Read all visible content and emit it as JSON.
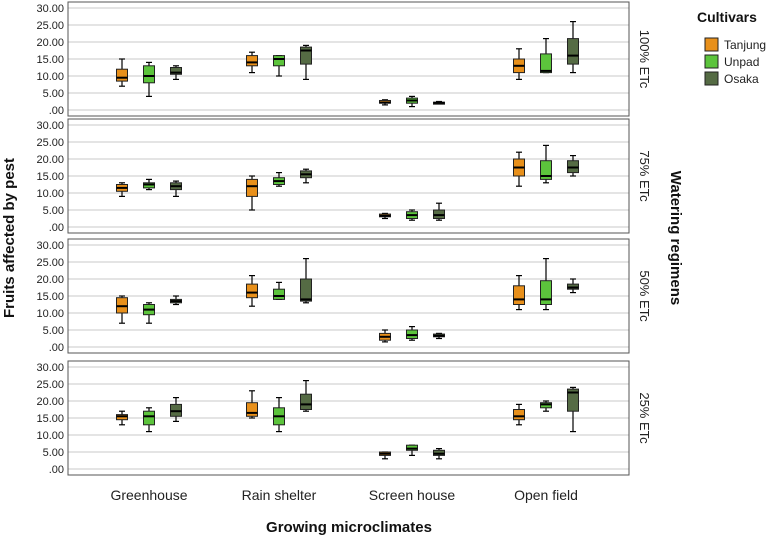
{
  "chart_data": {
    "type": "boxplot",
    "ylabel": "Fruits affected by pest",
    "xlabel": "Growing microclimates",
    "facet_title": "Watering regimens",
    "legend_title": "Cultivars",
    "categories": [
      "Greenhouse",
      "Rain shelter",
      "Screen house",
      "Open field"
    ],
    "ylim": [
      0,
      30
    ],
    "yticks": [
      ".00",
      "5.00",
      "10.00",
      "15.00",
      "20.00",
      "25.00",
      "30.00"
    ],
    "cultivars": [
      {
        "name": "Tanjung",
        "color": "#e8901b"
      },
      {
        "name": "Unpad",
        "color": "#5cc43c"
      },
      {
        "name": "Osaka",
        "color": "#556b44"
      }
    ],
    "panels": [
      {
        "label": "100% ETc",
        "boxes": [
          [
            [
              7,
              8.5,
              9.5,
              12,
              15
            ],
            [
              4,
              8,
              10,
              13,
              14
            ],
            [
              9,
              10.5,
              11,
              12.5,
              13
            ]
          ],
          [
            [
              11,
              13,
              14,
              16,
              17
            ],
            [
              10,
              13,
              15,
              16,
              16
            ],
            [
              9,
              13.5,
              17.5,
              18.5,
              19
            ]
          ],
          [
            [
              1.5,
              2,
              2.2,
              2.8,
              3
            ],
            [
              1,
              2,
              2.8,
              3.5,
              4
            ],
            [
              1.8,
              2,
              2.1,
              2.3,
              2.5
            ]
          ],
          [
            [
              9,
              11,
              13,
              15,
              18
            ],
            [
              11,
              11,
              11.5,
              16.5,
              21
            ],
            [
              11,
              13.5,
              16,
              21,
              26
            ]
          ]
        ]
      },
      {
        "label": "75% ETc",
        "boxes": [
          [
            [
              9,
              10.5,
              11.5,
              12.5,
              13
            ],
            [
              11,
              11.5,
              12.5,
              13,
              14
            ],
            [
              9,
              11,
              12,
              13,
              13.5
            ]
          ],
          [
            [
              5,
              9,
              12,
              14,
              15
            ],
            [
              12,
              12.5,
              13.5,
              14.5,
              16
            ],
            [
              13,
              14.5,
              15.5,
              16.5,
              17
            ]
          ],
          [
            [
              2.5,
              3,
              3.3,
              3.8,
              4
            ],
            [
              2,
              2.5,
              3.5,
              4.5,
              5
            ],
            [
              2,
              2.5,
              3.5,
              5,
              7
            ]
          ],
          [
            [
              12,
              15,
              17.5,
              20,
              22
            ],
            [
              13,
              14,
              15,
              19.5,
              24
            ],
            [
              15,
              16,
              17.5,
              19.5,
              21
            ]
          ]
        ]
      },
      {
        "label": "50% ETc",
        "boxes": [
          [
            [
              7,
              10,
              12,
              14.5,
              15
            ],
            [
              7,
              9.5,
              11,
              12.5,
              13
            ],
            [
              12.5,
              13,
              13.5,
              14,
              15
            ]
          ],
          [
            [
              12,
              14.5,
              16,
              18.5,
              21
            ],
            [
              14,
              14,
              15,
              17,
              19
            ],
            [
              13,
              13.5,
              14,
              20,
              26
            ]
          ],
          [
            [
              1.5,
              2,
              3,
              4,
              5
            ],
            [
              2,
              2.5,
              3.5,
              5,
              6
            ],
            [
              2.5,
              3,
              3.3,
              3.8,
              4
            ]
          ],
          [
            [
              11,
              12.5,
              14,
              18,
              21
            ],
            [
              11,
              12.5,
              14,
              19.5,
              26
            ],
            [
              16,
              17,
              17.5,
              18.5,
              20
            ]
          ]
        ]
      },
      {
        "label": "25% ETc",
        "boxes": [
          [
            [
              13,
              14.5,
              15.5,
              16,
              17
            ],
            [
              11,
              13,
              15.5,
              17,
              18
            ],
            [
              14,
              15.5,
              17,
              19,
              21
            ]
          ],
          [
            [
              15,
              15.5,
              16.5,
              19.5,
              23
            ],
            [
              11,
              13,
              15.5,
              18,
              21
            ],
            [
              17,
              17.5,
              19,
              22,
              26
            ]
          ],
          [
            [
              3,
              4,
              4.5,
              5,
              5
            ],
            [
              4,
              5.5,
              6,
              7,
              7
            ],
            [
              3,
              4,
              4.5,
              5.5,
              6
            ]
          ],
          [
            [
              13,
              14.5,
              15.5,
              17.5,
              19
            ],
            [
              17,
              18,
              19,
              19.5,
              20
            ],
            [
              11,
              17,
              22.5,
              23.5,
              24
            ]
          ]
        ]
      }
    ]
  }
}
